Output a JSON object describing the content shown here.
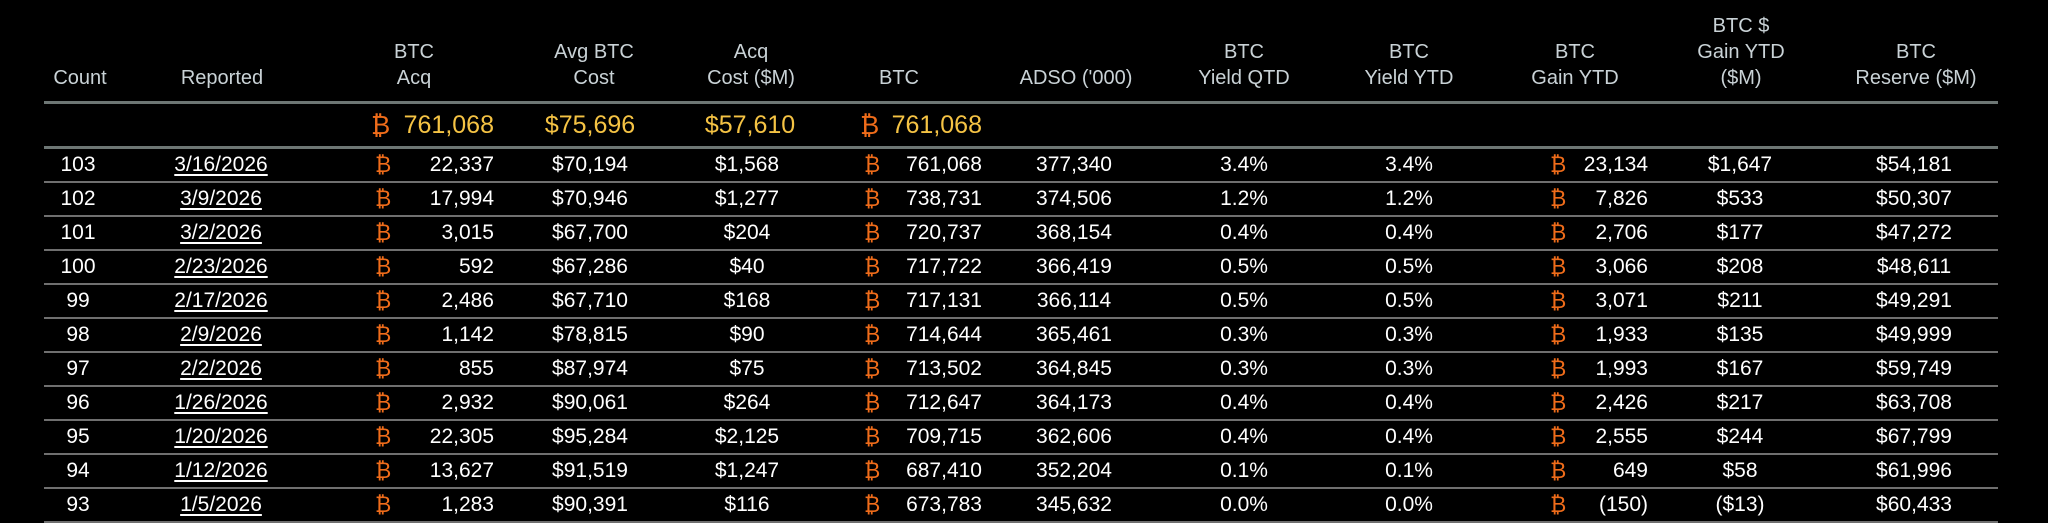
{
  "colors": {
    "background": "#000000",
    "header_text": "#c9d2d6",
    "totals_text": "#f5c344",
    "btc_symbol": "#ef6c1a",
    "body_text": "#ffffff",
    "rule": "#6f6f6f"
  },
  "btc_symbol": "₿",
  "columns": [
    {
      "key": "count",
      "lines": [
        "Count"
      ]
    },
    {
      "key": "reported",
      "lines": [
        "Reported"
      ]
    },
    {
      "key": "btc_acq",
      "lines": [
        "BTC",
        "Acq"
      ]
    },
    {
      "key": "avg_btc_cost",
      "lines": [
        "Avg BTC",
        "Cost"
      ]
    },
    {
      "key": "acq_cost",
      "lines": [
        "Acq",
        "Cost ($M)"
      ]
    },
    {
      "key": "btc",
      "lines": [
        "BTC"
      ]
    },
    {
      "key": "adso",
      "lines": [
        "ADSO ('000)"
      ]
    },
    {
      "key": "btc_yield_qtd",
      "lines": [
        "BTC",
        "Yield QTD"
      ]
    },
    {
      "key": "btc_yield_ytd",
      "lines": [
        "BTC",
        "Yield YTD"
      ]
    },
    {
      "key": "btc_gain_ytd",
      "lines": [
        "BTC",
        "Gain YTD"
      ]
    },
    {
      "key": "btc_usd_gain_ytd",
      "lines": [
        "BTC $",
        "Gain YTD",
        "($M)"
      ]
    },
    {
      "key": "btc_reserve",
      "lines": [
        "BTC",
        "Reserve ($M)"
      ]
    }
  ],
  "totals": {
    "btc_acq": "761,068",
    "avg_btc_cost": "$75,696",
    "acq_cost": "$57,610",
    "btc": "761,068"
  },
  "rows": [
    {
      "count": "103",
      "reported": "3/16/2026",
      "btc_acq": "22,337",
      "avg_btc_cost": "$70,194",
      "acq_cost": "$1,568",
      "btc": "761,068",
      "adso": "377,340",
      "btc_yield_qtd": "3.4%",
      "btc_yield_ytd": "3.4%",
      "btc_gain_ytd": "23,134",
      "btc_usd_gain_ytd": "$1,647",
      "btc_reserve": "$54,181"
    },
    {
      "count": "102",
      "reported": "3/9/2026",
      "btc_acq": "17,994",
      "avg_btc_cost": "$70,946",
      "acq_cost": "$1,277",
      "btc": "738,731",
      "adso": "374,506",
      "btc_yield_qtd": "1.2%",
      "btc_yield_ytd": "1.2%",
      "btc_gain_ytd": "7,826",
      "btc_usd_gain_ytd": "$533",
      "btc_reserve": "$50,307"
    },
    {
      "count": "101",
      "reported": "3/2/2026",
      "btc_acq": "3,015",
      "avg_btc_cost": "$67,700",
      "acq_cost": "$204",
      "btc": "720,737",
      "adso": "368,154",
      "btc_yield_qtd": "0.4%",
      "btc_yield_ytd": "0.4%",
      "btc_gain_ytd": "2,706",
      "btc_usd_gain_ytd": "$177",
      "btc_reserve": "$47,272"
    },
    {
      "count": "100",
      "reported": "2/23/2026",
      "btc_acq": "592",
      "avg_btc_cost": "$67,286",
      "acq_cost": "$40",
      "btc": "717,722",
      "adso": "366,419",
      "btc_yield_qtd": "0.5%",
      "btc_yield_ytd": "0.5%",
      "btc_gain_ytd": "3,066",
      "btc_usd_gain_ytd": "$208",
      "btc_reserve": "$48,611"
    },
    {
      "count": "99",
      "reported": "2/17/2026",
      "btc_acq": "2,486",
      "avg_btc_cost": "$67,710",
      "acq_cost": "$168",
      "btc": "717,131",
      "adso": "366,114",
      "btc_yield_qtd": "0.5%",
      "btc_yield_ytd": "0.5%",
      "btc_gain_ytd": "3,071",
      "btc_usd_gain_ytd": "$211",
      "btc_reserve": "$49,291"
    },
    {
      "count": "98",
      "reported": "2/9/2026",
      "btc_acq": "1,142",
      "avg_btc_cost": "$78,815",
      "acq_cost": "$90",
      "btc": "714,644",
      "adso": "365,461",
      "btc_yield_qtd": "0.3%",
      "btc_yield_ytd": "0.3%",
      "btc_gain_ytd": "1,933",
      "btc_usd_gain_ytd": "$135",
      "btc_reserve": "$49,999"
    },
    {
      "count": "97",
      "reported": "2/2/2026",
      "btc_acq": "855",
      "avg_btc_cost": "$87,974",
      "acq_cost": "$75",
      "btc": "713,502",
      "adso": "364,845",
      "btc_yield_qtd": "0.3%",
      "btc_yield_ytd": "0.3%",
      "btc_gain_ytd": "1,993",
      "btc_usd_gain_ytd": "$167",
      "btc_reserve": "$59,749"
    },
    {
      "count": "96",
      "reported": "1/26/2026",
      "btc_acq": "2,932",
      "avg_btc_cost": "$90,061",
      "acq_cost": "$264",
      "btc": "712,647",
      "adso": "364,173",
      "btc_yield_qtd": "0.4%",
      "btc_yield_ytd": "0.4%",
      "btc_gain_ytd": "2,426",
      "btc_usd_gain_ytd": "$217",
      "btc_reserve": "$63,708"
    },
    {
      "count": "95",
      "reported": "1/20/2026",
      "btc_acq": "22,305",
      "avg_btc_cost": "$95,284",
      "acq_cost": "$2,125",
      "btc": "709,715",
      "adso": "362,606",
      "btc_yield_qtd": "0.4%",
      "btc_yield_ytd": "0.4%",
      "btc_gain_ytd": "2,555",
      "btc_usd_gain_ytd": "$244",
      "btc_reserve": "$67,799"
    },
    {
      "count": "94",
      "reported": "1/12/2026",
      "btc_acq": "13,627",
      "avg_btc_cost": "$91,519",
      "acq_cost": "$1,247",
      "btc": "687,410",
      "adso": "352,204",
      "btc_yield_qtd": "0.1%",
      "btc_yield_ytd": "0.1%",
      "btc_gain_ytd": "649",
      "btc_usd_gain_ytd": "$58",
      "btc_reserve": "$61,996"
    },
    {
      "count": "93",
      "reported": "1/5/2026",
      "btc_acq": "1,283",
      "avg_btc_cost": "$90,391",
      "acq_cost": "$116",
      "btc": "673,783",
      "adso": "345,632",
      "btc_yield_qtd": "0.0%",
      "btc_yield_ytd": "0.0%",
      "btc_gain_ytd": "(150)",
      "btc_usd_gain_ytd": "($13)",
      "btc_reserve": "$60,433"
    }
  ]
}
